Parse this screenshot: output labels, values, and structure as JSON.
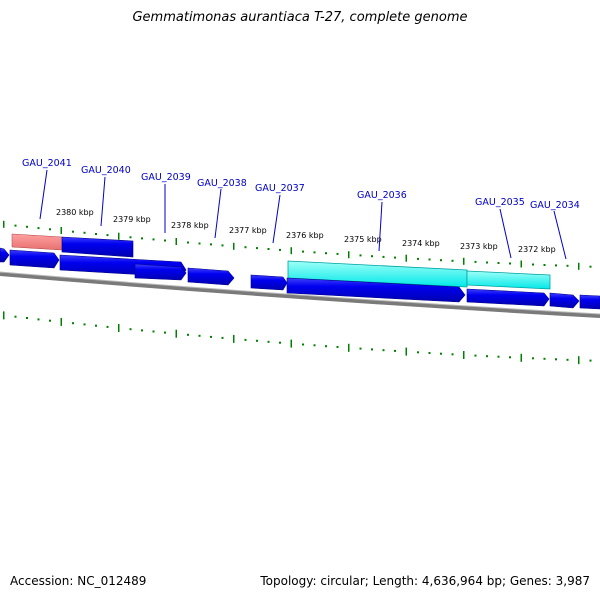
{
  "title": "Gemmatimonas aurantiaca T-27, complete genome",
  "accession": "Accession: NC_012489",
  "info": "Topology: circular; Length: 4,636,964 bp; Genes: 3,987",
  "kbp_labels": [
    "2380 kbp",
    "2379 kbp",
    "2378 kbp",
    "2377 kbp",
    "2376 kbp",
    "2375 kbp",
    "2374 kbp",
    "2373 kbp",
    "2372 kbp"
  ],
  "gene_labels": [
    "GAU_2041",
    "GAU_2040",
    "GAU_2039",
    "GAU_2038",
    "GAU_2037",
    "GAU_2036",
    "GAU_2035",
    "GAU_2034"
  ],
  "colors": {
    "gene": "#0000e6",
    "gene_edge": "#00008c",
    "feature_cyan": "#00ffff",
    "feature_red": "#f08080",
    "backbone": "#808080",
    "tick": "#008000",
    "label": "#0000c8"
  }
}
